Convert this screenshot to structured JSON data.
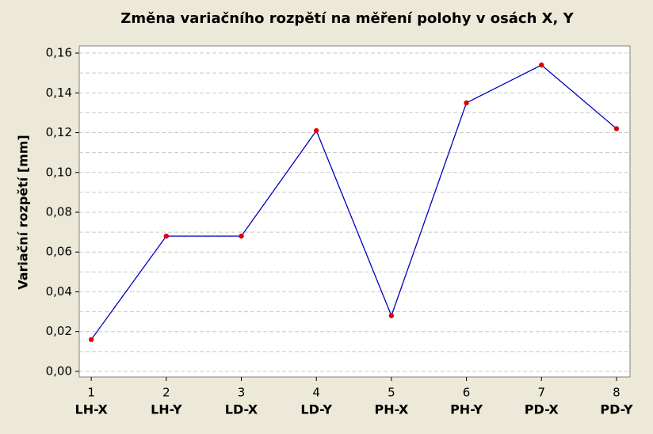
{
  "chart_data": {
    "type": "line",
    "title": "Změna variačního rozpětí na měření polohy v osách X, Y",
    "y_label": "Variační rozpětí [mm]",
    "x": [
      1,
      2,
      3,
      4,
      5,
      6,
      7,
      8
    ],
    "categories": [
      "LH-X",
      "LH-Y",
      "LD-X",
      "LD-Y",
      "PH-X",
      "PH-Y",
      "PD-X",
      "PD-Y"
    ],
    "series": [
      {
        "color": "#0000c0",
        "marker_color": "#e00000",
        "values": [
          0.016,
          0.068,
          0.068,
          0.121,
          0.028,
          0.135,
          0.154,
          0.122
        ]
      }
    ],
    "xlim": [
      0.84,
      8.18
    ],
    "xticks": [
      1,
      2,
      3,
      4,
      5,
      6,
      7,
      8
    ],
    "ylim": [
      -0.0028,
      0.1636
    ],
    "yticks": [
      {
        "value": 0,
        "label": "0,00"
      },
      {
        "value": 0.02,
        "label": "0,02"
      },
      {
        "value": 0.04,
        "label": "0,04"
      },
      {
        "value": 0.06,
        "label": "0,06"
      },
      {
        "value": 0.08,
        "label": "0,08"
      },
      {
        "value": 0.1,
        "label": "0,10"
      },
      {
        "value": 0.12,
        "label": "0,12"
      },
      {
        "value": 0.14,
        "label": "0,14"
      },
      {
        "value": 0.16,
        "label": "0,16"
      }
    ],
    "y_minor_ticks": [
      0.01,
      0.03,
      0.05,
      0.07,
      0.09,
      0.11,
      0.13,
      0.15
    ],
    "grid": true
  }
}
